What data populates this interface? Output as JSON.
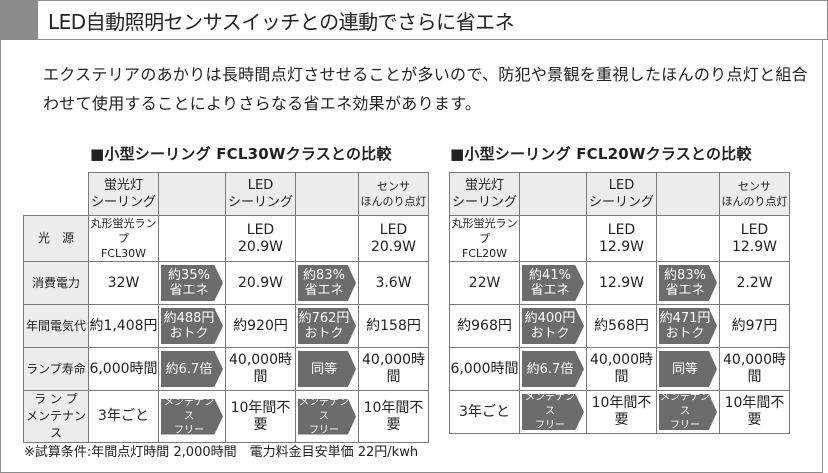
{
  "header": {
    "title": "LED自動照明センサスイッチとの連動でさらに省エネ"
  },
  "intro": "エクステリアのあかりは長時間点灯させせることが多いので、防犯や景観を重視したほんのり点灯と組合わせて使用することによりさらなる省エネ効果があります。",
  "row_labels": [
    "光　源",
    "消費電力",
    "年間電気代",
    "ランプ寿命",
    "ラ ン プ\nメンテナンス"
  ],
  "tables": [
    {
      "title": "■小型シーリング FCL30Wクラスとの比較",
      "columns": [
        "蛍光灯\nシーリング",
        "",
        "LED\nシーリング",
        "",
        "センサ\nほんのり点灯"
      ],
      "rows": [
        [
          "丸形蛍光ランプ\nFCL30W",
          "",
          "LED\n20.9W",
          "",
          "LED\n20.9W"
        ],
        [
          "32W",
          "約35%\n省エネ",
          "20.9W",
          "約83%\n省エネ",
          "3.6W"
        ],
        [
          "約1,408円",
          "約488円\nおトク",
          "約920円",
          "約762円\nおトク",
          "約158円"
        ],
        [
          "6,000時間",
          "約6.7倍",
          "40,000時間",
          "同等",
          "40,000時間"
        ],
        [
          "3年ごと",
          "メンテナンス\nフリー",
          "10年間不要",
          "メンテナンス\nフリー",
          "10年間不要"
        ]
      ]
    },
    {
      "title": "■小型シーリング FCL20Wクラスとの比較",
      "columns": [
        "蛍光灯\nシーリング",
        "",
        "LED\nシーリング",
        "",
        "センサ\nほんのり点灯"
      ],
      "rows": [
        [
          "丸形蛍光ランプ\nFCL20W",
          "",
          "LED\n12.9W",
          "",
          "LED\n12.9W"
        ],
        [
          "22W",
          "約41%\n省エネ",
          "12.9W",
          "約83%\n省エネ",
          "2.2W"
        ],
        [
          "約968円",
          "約400円\nおトク",
          "約568円",
          "約471円\nおトク",
          "約97円"
        ],
        [
          "6,000時間",
          "約6.7倍",
          "40,000時間",
          "同等",
          "40,000時間"
        ],
        [
          "3年ごと",
          "メンテナンス\nフリー",
          "10年間不要",
          "メンテナンス\nフリー",
          "10年間不要"
        ]
      ]
    }
  ],
  "note": "※試算条件:年間点灯時間 2,000時間　電力料金目安単価 22円/kwh",
  "colors": {
    "header_block": "#8c8c8c",
    "arrow": "#6c6c6c",
    "header_cell": "#ececec"
  }
}
